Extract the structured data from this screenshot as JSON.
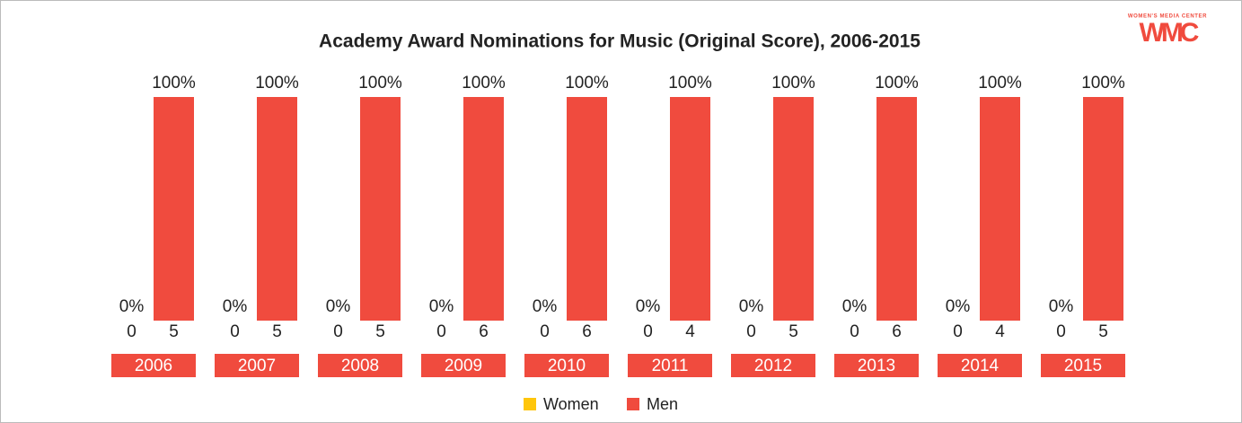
{
  "chart_data": {
    "type": "bar",
    "title": "Academy Award Nominations for Music (Original Score), 2006-2015",
    "categories": [
      "2006",
      "2007",
      "2008",
      "2009",
      "2010",
      "2011",
      "2012",
      "2013",
      "2014",
      "2015"
    ],
    "series": [
      {
        "name": "Women",
        "color": "#ffc60b",
        "values": [
          0,
          0,
          0,
          0,
          0,
          0,
          0,
          0,
          0,
          0
        ],
        "value_labels": [
          "0%",
          "0%",
          "0%",
          "0%",
          "0%",
          "0%",
          "0%",
          "0%",
          "0%",
          "0%"
        ],
        "counts": [
          0,
          0,
          0,
          0,
          0,
          0,
          0,
          0,
          0,
          0
        ]
      },
      {
        "name": "Men",
        "color": "#f04b3e",
        "values": [
          100,
          100,
          100,
          100,
          100,
          100,
          100,
          100,
          100,
          100
        ],
        "value_labels": [
          "100%",
          "100%",
          "100%",
          "100%",
          "100%",
          "100%",
          "100%",
          "100%",
          "100%",
          "100%"
        ],
        "counts": [
          5,
          5,
          5,
          6,
          6,
          4,
          5,
          6,
          4,
          5
        ]
      }
    ],
    "legend": "bottom"
  },
  "logo": {
    "tagline": "WOMEN'S MEDIA CENTER",
    "name": "WMC"
  }
}
